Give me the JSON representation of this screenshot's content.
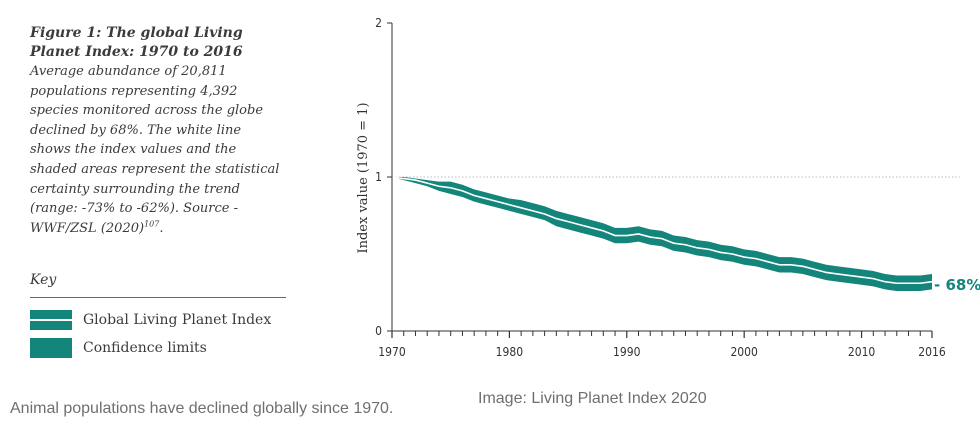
{
  "caption": {
    "title": "Figure 1: The global Living Planet Index: 1970 to 2016",
    "body": "Average abundance of 20,811 populations representing 4,392 species monitored across the globe declined by 68%. The white line shows the index values and the shaded areas represent the statistical certainty surrounding the trend (range: -73% to -62%). Source - WWF/ZSL (2020)",
    "source_ref": "107",
    "source_end": "."
  },
  "key": {
    "title": "Key",
    "items": [
      {
        "label": "Global Living Planet Index",
        "swatch": "line"
      },
      {
        "label": "Confidence limits",
        "swatch": "band"
      }
    ]
  },
  "colors": {
    "band": "#14857b",
    "index_line": "#ffffff",
    "axis": "#333333",
    "reference_line": "#bdbdbd"
  },
  "chart_data": {
    "type": "line",
    "ylabel": "Index value (1970 = 1)",
    "xlabel": "",
    "xlim": [
      1970,
      2016
    ],
    "ylim": [
      0,
      2
    ],
    "x_ticks": [
      1970,
      1980,
      1990,
      2000,
      2010,
      2016
    ],
    "y_ticks": [
      0,
      1,
      2
    ],
    "reference_line": {
      "y": 1,
      "style": "dotted"
    },
    "end_label": "- 68%",
    "x": [
      1970,
      1971,
      1972,
      1973,
      1974,
      1975,
      1976,
      1977,
      1978,
      1979,
      1980,
      1981,
      1982,
      1983,
      1984,
      1985,
      1986,
      1987,
      1988,
      1989,
      1990,
      1991,
      1992,
      1993,
      1994,
      1995,
      1996,
      1997,
      1998,
      1999,
      2000,
      2001,
      2002,
      2003,
      2004,
      2005,
      2006,
      2007,
      2008,
      2009,
      2010,
      2011,
      2012,
      2013,
      2014,
      2015,
      2016
    ],
    "series": [
      {
        "name": "Global Living Planet Index",
        "values": [
          1.0,
          0.99,
          0.98,
          0.96,
          0.94,
          0.93,
          0.91,
          0.88,
          0.86,
          0.84,
          0.82,
          0.8,
          0.78,
          0.76,
          0.73,
          0.71,
          0.69,
          0.67,
          0.65,
          0.62,
          0.62,
          0.63,
          0.61,
          0.6,
          0.57,
          0.56,
          0.54,
          0.53,
          0.51,
          0.5,
          0.48,
          0.47,
          0.45,
          0.43,
          0.43,
          0.42,
          0.4,
          0.38,
          0.37,
          0.36,
          0.35,
          0.34,
          0.32,
          0.31,
          0.31,
          0.31,
          0.32
        ]
      },
      {
        "name": "Confidence limits (upper)",
        "values": [
          1.0,
          1.0,
          0.99,
          0.98,
          0.97,
          0.97,
          0.95,
          0.92,
          0.9,
          0.88,
          0.86,
          0.85,
          0.83,
          0.81,
          0.78,
          0.76,
          0.74,
          0.72,
          0.7,
          0.67,
          0.67,
          0.68,
          0.66,
          0.65,
          0.62,
          0.61,
          0.59,
          0.58,
          0.56,
          0.55,
          0.53,
          0.52,
          0.5,
          0.48,
          0.48,
          0.47,
          0.45,
          0.43,
          0.42,
          0.41,
          0.4,
          0.39,
          0.37,
          0.36,
          0.36,
          0.36,
          0.37
        ]
      },
      {
        "name": "Confidence limits (lower)",
        "values": [
          1.0,
          0.98,
          0.96,
          0.94,
          0.91,
          0.89,
          0.87,
          0.84,
          0.82,
          0.8,
          0.78,
          0.76,
          0.74,
          0.72,
          0.68,
          0.66,
          0.64,
          0.62,
          0.6,
          0.57,
          0.57,
          0.58,
          0.56,
          0.55,
          0.52,
          0.51,
          0.49,
          0.48,
          0.46,
          0.45,
          0.43,
          0.42,
          0.4,
          0.38,
          0.38,
          0.37,
          0.35,
          0.33,
          0.32,
          0.31,
          0.3,
          0.29,
          0.27,
          0.26,
          0.26,
          0.26,
          0.27
        ]
      }
    ]
  },
  "footer": {
    "caption": "Animal populations have declined globally since 1970.",
    "credit": "Image: Living Planet Index 2020"
  }
}
